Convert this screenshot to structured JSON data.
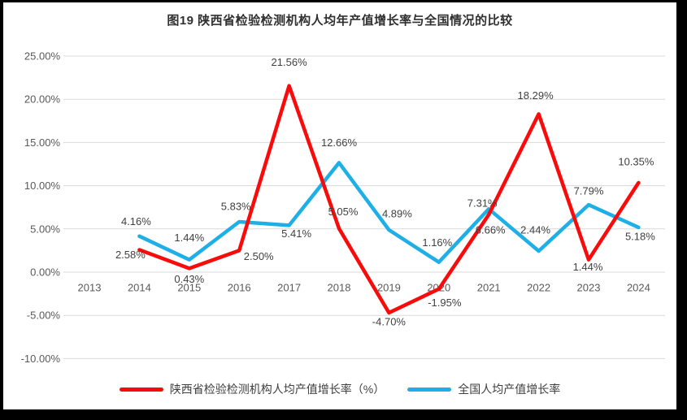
{
  "frame": {
    "border_color": "#000000",
    "canvas_background": "#ffffff"
  },
  "chart_data": {
    "type": "line",
    "title": "图19 陕西省检验检测机构人均年产值增长率与全国情况的比较",
    "xlabel": "",
    "ylabel": "",
    "ylim": [
      -10,
      25
    ],
    "grid": true,
    "gridline_color": "#d9d9d9",
    "axis_label_color": "#595959",
    "data_label_color": "#404040",
    "legend_position": "bottom",
    "categories": [
      "2013",
      "2014",
      "2015",
      "2016",
      "2017",
      "2018",
      "2019",
      "2020",
      "2021",
      "2022",
      "2023",
      "2024"
    ],
    "y_axis": {
      "labels": [
        "25.00%",
        "20.00%",
        "15.00%",
        "10.00%",
        "5.00%",
        "0.00%",
        "-5.00%",
        "-10.00%"
      ],
      "values": [
        25,
        20,
        15,
        10,
        5,
        0,
        -5,
        -10
      ]
    },
    "series": [
      {
        "name": "陕西省检验检测机构人均产值增长率（%）",
        "color": "#f90b0b",
        "start_category_index": 1,
        "values": [
          2.58,
          0.43,
          2.5,
          21.56,
          5.05,
          -4.7,
          -1.95,
          6.66,
          18.29,
          1.44,
          10.35
        ],
        "point_labels": [
          "2.58%",
          "0.43%",
          "2.50%",
          "21.56%",
          "5.05%",
          "-4.70%",
          "-1.95%",
          "6.66%",
          "18.29%",
          "1.44%",
          "10.35%"
        ]
      },
      {
        "name": "全国人均产值增长率",
        "color": "#1eafe6",
        "start_category_index": 1,
        "values": [
          4.16,
          1.44,
          5.83,
          5.41,
          12.66,
          4.89,
          1.16,
          7.31,
          2.44,
          7.79,
          5.18
        ],
        "point_labels": [
          "4.16%",
          "1.44%",
          "5.83%",
          "5.41%",
          "12.66%",
          "4.89%",
          "1.16%",
          "7.31%",
          "2.44%",
          "7.79%",
          "5.18%"
        ]
      }
    ]
  }
}
